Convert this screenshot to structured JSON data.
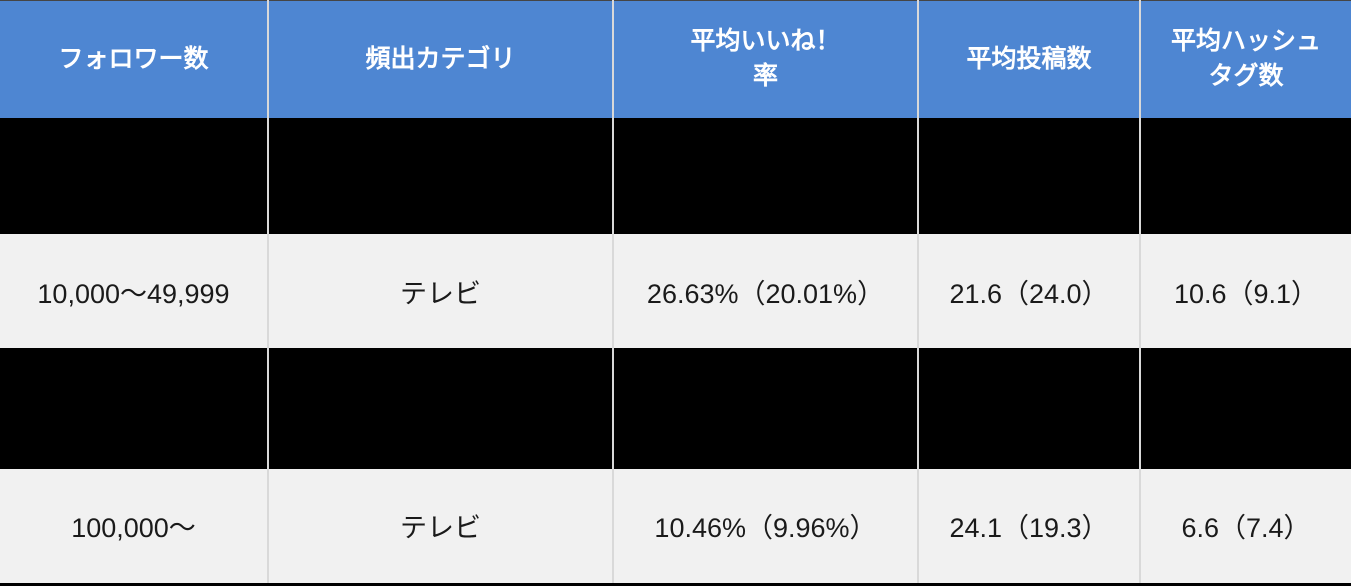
{
  "chart_data": {
    "type": "table",
    "columns": [
      "フォロワー数",
      "頻出カテゴリ",
      "平均いいね！率",
      "平均投稿数",
      "平均ハッシュタグ数"
    ],
    "columns_display": [
      "フォロワー数",
      "頻出カテゴリ",
      "平均いいね！\n率",
      "平均投稿数",
      "平均ハッシュ\nタグ数"
    ],
    "rows": [
      [
        "",
        "",
        "",
        "",
        ""
      ],
      [
        "10,000〜49,999",
        "テレビ",
        "26.63%（20.01%）",
        "21.6（24.0）",
        "10.6（9.1）"
      ],
      [
        "",
        "",
        "",
        "",
        ""
      ],
      [
        "100,000〜",
        "テレビ",
        "10.46%（9.96%）",
        "24.1（19.3）",
        "6.6（7.4）"
      ]
    ],
    "redacted_rows": [
      0,
      2
    ],
    "layout": {
      "legend": "none",
      "grid": "vertical-dividers-only"
    }
  },
  "colors": {
    "header_bg": "#4E86D2",
    "header_text": "#FFFFFF",
    "row_bg": "#F1F1F1",
    "redacted_row_bg": "#000000",
    "divider": "#D9D9D9",
    "body_text": "#1A1A1A",
    "bottom_border": "#000000"
  }
}
